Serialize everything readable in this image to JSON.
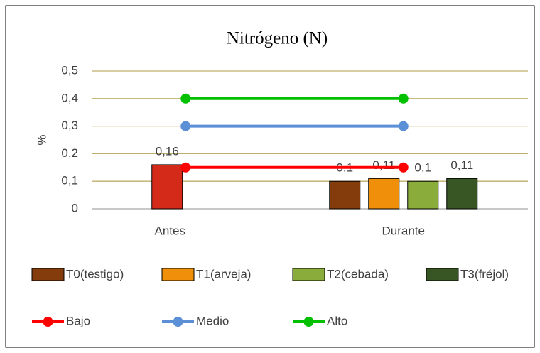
{
  "chart_data": {
    "type": "bar",
    "title": "Nitrógeno (N)",
    "y_label": "%",
    "categories": [
      "Antes",
      "Durante"
    ],
    "ylim": [
      0,
      0.5
    ],
    "yticks": [
      0,
      {
        "value": 0.1,
        "label": "0,1"
      },
      {
        "value": 0.2,
        "label": "0,2"
      },
      {
        "value": 0.3,
        "label": "0,3"
      },
      {
        "value": 0.4,
        "label": "0,4"
      },
      {
        "value": 0.5,
        "label": "0,5"
      }
    ],
    "grid": true,
    "series": [
      {
        "color": "#d42a1a",
        "values": [
          0.16,
          null
        ],
        "value_labels": [
          "0,16",
          null
        ]
      },
      {
        "name": "T0(testigo)",
        "color": "#843c0c",
        "values": [
          null,
          0.1
        ],
        "value_labels": [
          null,
          "0,1"
        ]
      },
      {
        "name": "T1(arveja)",
        "color": "#f0900a",
        "values": [
          null,
          0.11
        ],
        "value_labels": [
          null,
          "0,11"
        ]
      },
      {
        "name": "T2(cebada)",
        "color": "#8aac3a",
        "values": [
          null,
          0.1
        ],
        "value_labels": [
          null,
          "0,1"
        ]
      },
      {
        "name": "T3(fréjol)",
        "color": "#375623",
        "values": [
          null,
          0.11
        ],
        "value_labels": [
          null,
          "0,11"
        ]
      }
    ],
    "line_series": [
      {
        "name": "Bajo",
        "color": "#ff0000",
        "values": [
          0.15,
          0.15
        ]
      },
      {
        "name": "Medio",
        "color": "#5b8fd6",
        "values": [
          0.3,
          0.3
        ]
      },
      {
        "name": "Alto",
        "color": "#00c000",
        "values": [
          0.4,
          0.4
        ]
      }
    ]
  }
}
